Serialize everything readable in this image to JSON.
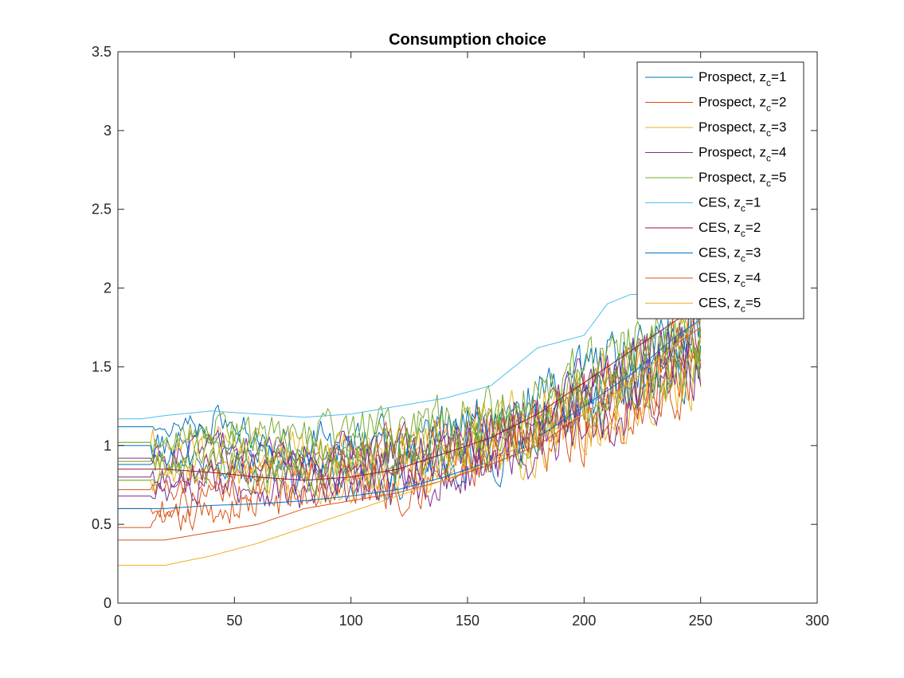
{
  "chart_data": {
    "type": "line",
    "title": "Consumption choice",
    "xlabel": "",
    "ylabel": "",
    "xlim": [
      0,
      300
    ],
    "ylim": [
      0,
      3.5
    ],
    "xticks": [
      0,
      50,
      100,
      150,
      200,
      250,
      300
    ],
    "yticks": [
      0,
      0.5,
      1,
      1.5,
      2,
      2.5,
      3,
      3.5
    ],
    "xtick_labels": [
      "0",
      "50",
      "100",
      "150",
      "200",
      "250",
      "300"
    ],
    "ytick_labels": [
      "0",
      "0.5",
      "1",
      "1.5",
      "2",
      "2.5",
      "3",
      "3.5"
    ],
    "grid": false,
    "legend_position": "top-right",
    "series": [
      {
        "legend_main": "Prospect, z",
        "legend_sub": "c",
        "legend_tail": "=1",
        "color": "#0072BD",
        "style": "noisy",
        "x": [
          0,
          20,
          40,
          60,
          80,
          100,
          120,
          140,
          160,
          180,
          200,
          220,
          240,
          250
        ],
        "y": [
          1.0,
          1.0,
          1.05,
          0.95,
          0.9,
          0.95,
          0.9,
          1.0,
          1.05,
          1.15,
          1.3,
          1.45,
          1.6,
          1.7
        ]
      },
      {
        "legend_main": "Prospect, z",
        "legend_sub": "c",
        "legend_tail": "=2",
        "color": "#D95319",
        "style": "noisy",
        "x": [
          0,
          20,
          40,
          60,
          80,
          100,
          120,
          140,
          160,
          180,
          200,
          220,
          240,
          250
        ],
        "y": [
          0.6,
          0.6,
          0.7,
          0.75,
          0.8,
          0.85,
          0.85,
          0.9,
          1.0,
          1.1,
          1.2,
          1.35,
          1.5,
          1.6
        ]
      },
      {
        "legend_main": "Prospect, z",
        "legend_sub": "c",
        "legend_tail": "=3",
        "color": "#EDB120",
        "style": "noisy",
        "x": [
          0,
          20,
          40,
          60,
          80,
          100,
          120,
          140,
          160,
          180,
          200,
          220,
          240,
          250
        ],
        "y": [
          0.9,
          0.9,
          0.95,
          0.9,
          0.85,
          0.85,
          0.9,
          0.95,
          1.0,
          1.1,
          1.2,
          1.35,
          1.5,
          1.6
        ]
      },
      {
        "legend_main": "Prospect, z",
        "legend_sub": "c",
        "legend_tail": "=4",
        "color": "#7E2F8E",
        "style": "noisy",
        "x": [
          0,
          20,
          40,
          60,
          80,
          100,
          120,
          140,
          160,
          180,
          200,
          220,
          240,
          250
        ],
        "y": [
          0.8,
          0.8,
          0.9,
          0.85,
          0.8,
          0.85,
          0.85,
          0.9,
          1.0,
          1.1,
          1.25,
          1.4,
          1.55,
          1.65
        ]
      },
      {
        "legend_main": "Prospect, z",
        "legend_sub": "c",
        "legend_tail": "=5",
        "color": "#77AC30",
        "style": "noisy",
        "x": [
          0,
          20,
          40,
          60,
          80,
          100,
          120,
          140,
          160,
          180,
          200,
          220,
          240,
          250
        ],
        "y": [
          0.9,
          0.9,
          1.0,
          0.95,
          0.95,
          1.0,
          1.0,
          1.05,
          1.1,
          1.2,
          1.35,
          1.5,
          1.6,
          1.7
        ]
      },
      {
        "legend_main": "CES, z",
        "legend_sub": "c",
        "legend_tail": "=1",
        "color": "#4DBEEE",
        "style": "smooth",
        "x": [
          0,
          10,
          20,
          40,
          60,
          80,
          100,
          120,
          140,
          160,
          170,
          180,
          200,
          210,
          220,
          230,
          240,
          250
        ],
        "y": [
          1.17,
          1.17,
          1.19,
          1.22,
          1.2,
          1.18,
          1.2,
          1.25,
          1.3,
          1.38,
          1.5,
          1.62,
          1.7,
          1.9,
          1.96,
          1.96,
          1.85,
          1.8
        ]
      },
      {
        "legend_main": "CES, z",
        "legend_sub": "c",
        "legend_tail": "=2",
        "color": "#A2142F",
        "style": "smooth",
        "x": [
          0,
          20,
          40,
          60,
          80,
          100,
          120,
          140,
          160,
          180,
          200,
          220,
          240,
          250
        ],
        "y": [
          0.85,
          0.85,
          0.83,
          0.8,
          0.78,
          0.8,
          0.85,
          0.95,
          1.05,
          1.2,
          1.4,
          1.6,
          1.8,
          1.9
        ]
      },
      {
        "legend_main": "CES, z",
        "legend_sub": "c",
        "legend_tail": "=3",
        "color": "#0072BD",
        "style": "smooth",
        "x": [
          0,
          20,
          40,
          60,
          80,
          100,
          120,
          140,
          160,
          180,
          200,
          220,
          240,
          250
        ],
        "y": [
          0.6,
          0.6,
          0.62,
          0.63,
          0.65,
          0.68,
          0.72,
          0.8,
          0.9,
          1.05,
          1.25,
          1.45,
          1.7,
          1.8
        ]
      },
      {
        "legend_main": "CES, z",
        "legend_sub": "c",
        "legend_tail": "=4",
        "color": "#D95319",
        "style": "smooth",
        "x": [
          0,
          20,
          40,
          60,
          80,
          100,
          120,
          140,
          160,
          180,
          200,
          220,
          240,
          250
        ],
        "y": [
          0.4,
          0.4,
          0.45,
          0.5,
          0.6,
          0.65,
          0.7,
          0.78,
          0.88,
          1.0,
          1.2,
          1.4,
          1.65,
          1.75
        ]
      },
      {
        "legend_main": "CES, z",
        "legend_sub": "c",
        "legend_tail": "=5",
        "color": "#EDB120",
        "style": "smooth",
        "x": [
          0,
          20,
          40,
          60,
          80,
          100,
          120,
          140,
          160,
          180,
          200,
          220,
          240,
          250
        ],
        "y": [
          0.24,
          0.24,
          0.3,
          0.38,
          0.48,
          0.58,
          0.68,
          0.78,
          0.9,
          1.05,
          1.2,
          1.4,
          1.65,
          1.8
        ]
      }
    ]
  }
}
